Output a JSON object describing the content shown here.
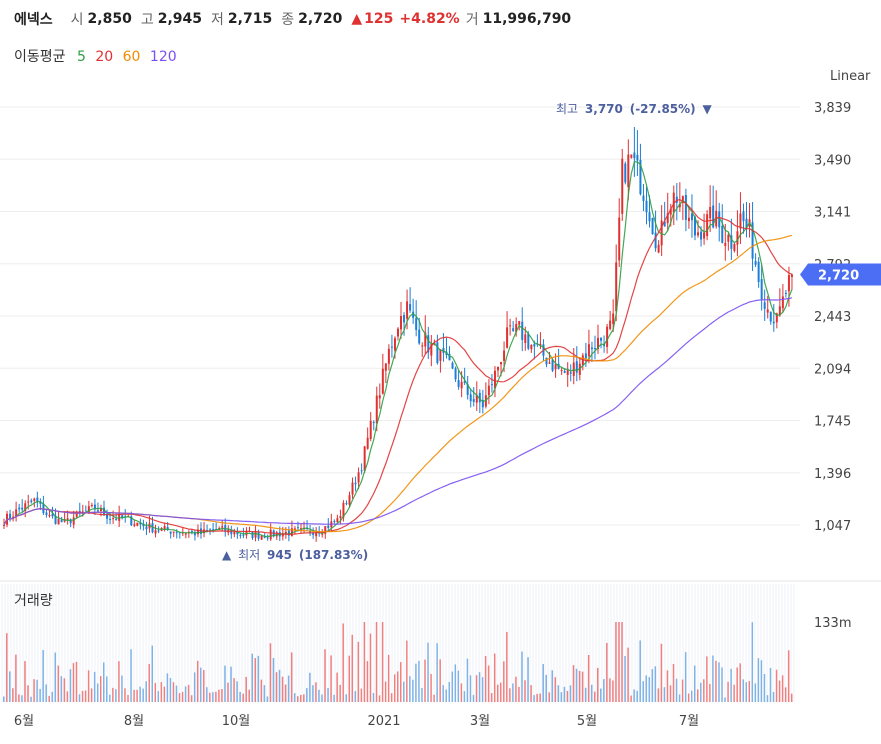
{
  "header": {
    "name": "에넥스",
    "open_label": "시",
    "open": "2,850",
    "high_label": "고",
    "high": "2,945",
    "low_label": "저",
    "low": "2,715",
    "close_label": "종",
    "close": "2,720",
    "change_arrow": "▲",
    "change": "125",
    "change_pct": "+4.82%",
    "volume_label": "거",
    "volume": "11,996,790"
  },
  "ma_legend": {
    "title": "이동평균",
    "items": [
      {
        "label": "5",
        "color": "#2f9e44"
      },
      {
        "label": "20",
        "color": "#e03131"
      },
      {
        "label": "60",
        "color": "#f08c00"
      },
      {
        "label": "120",
        "color": "#7950f2"
      }
    ]
  },
  "scale_label": "Linear",
  "volume_title": "거래량",
  "chart_data": {
    "type": "candlestick",
    "y_ticks": [
      "3,839",
      "3,490",
      "3,141",
      "2,792",
      "2,443",
      "2,094",
      "1,745",
      "1,396",
      "1,047"
    ],
    "y_tick_values": [
      3839,
      3490,
      3141,
      2792,
      2443,
      2094,
      1745,
      1396,
      1047
    ],
    "x_ticks": [
      "6월",
      "8월",
      "10월",
      "2021",
      "3월",
      "5월",
      "7월"
    ],
    "last_price_label": "2,720",
    "last_price": 2720,
    "high_annotation": {
      "prefix": "최고",
      "value": "3,770",
      "pct": "(-27.85%)",
      "marker": "▼"
    },
    "low_annotation": {
      "prefix": "최저",
      "value": "945",
      "pct": "(187.83%)",
      "marker": "▲"
    },
    "volume_tick": "133m",
    "approx_close_path": [
      [
        0,
        1080
      ],
      [
        5,
        1150
      ],
      [
        10,
        1210
      ],
      [
        15,
        1100
      ],
      [
        20,
        1060
      ],
      [
        25,
        1120
      ],
      [
        30,
        1160
      ],
      [
        35,
        1100
      ],
      [
        40,
        1090
      ],
      [
        45,
        1050
      ],
      [
        50,
        1020
      ],
      [
        55,
        1010
      ],
      [
        60,
        1000
      ],
      [
        65,
        990
      ],
      [
        70,
        1020
      ],
      [
        75,
        1000
      ],
      [
        80,
        985
      ],
      [
        85,
        980
      ],
      [
        90,
        990
      ],
      [
        95,
        1000
      ],
      [
        100,
        1005
      ],
      [
        105,
        1020
      ],
      [
        110,
        1080
      ],
      [
        115,
        1300
      ],
      [
        118,
        1450
      ],
      [
        121,
        1700
      ],
      [
        124,
        1950
      ],
      [
        127,
        2200
      ],
      [
        130,
        2400
      ],
      [
        133,
        2500
      ],
      [
        136,
        2350
      ],
      [
        140,
        2250
      ],
      [
        145,
        2150
      ],
      [
        150,
        2000
      ],
      [
        155,
        1880
      ],
      [
        158,
        1850
      ],
      [
        162,
        2050
      ],
      [
        166,
        2300
      ],
      [
        170,
        2350
      ],
      [
        174,
        2250
      ],
      [
        178,
        2180
      ],
      [
        182,
        2100
      ],
      [
        186,
        2050
      ],
      [
        190,
        2150
      ],
      [
        194,
        2250
      ],
      [
        198,
        2300
      ],
      [
        201,
        2400
      ],
      [
        204,
        3400
      ],
      [
        207,
        3500
      ],
      [
        210,
        3350
      ],
      [
        213,
        3150
      ],
      [
        216,
        2900
      ],
      [
        219,
        3200
      ],
      [
        222,
        3250
      ],
      [
        225,
        3100
      ],
      [
        228,
        3000
      ],
      [
        231,
        3050
      ],
      [
        234,
        3100
      ],
      [
        237,
        3000
      ],
      [
        240,
        2950
      ],
      [
        243,
        3100
      ],
      [
        246,
        3000
      ],
      [
        249,
        2700
      ],
      [
        252,
        2500
      ],
      [
        255,
        2400
      ],
      [
        258,
        2600
      ],
      [
        260,
        2720
      ]
    ]
  }
}
